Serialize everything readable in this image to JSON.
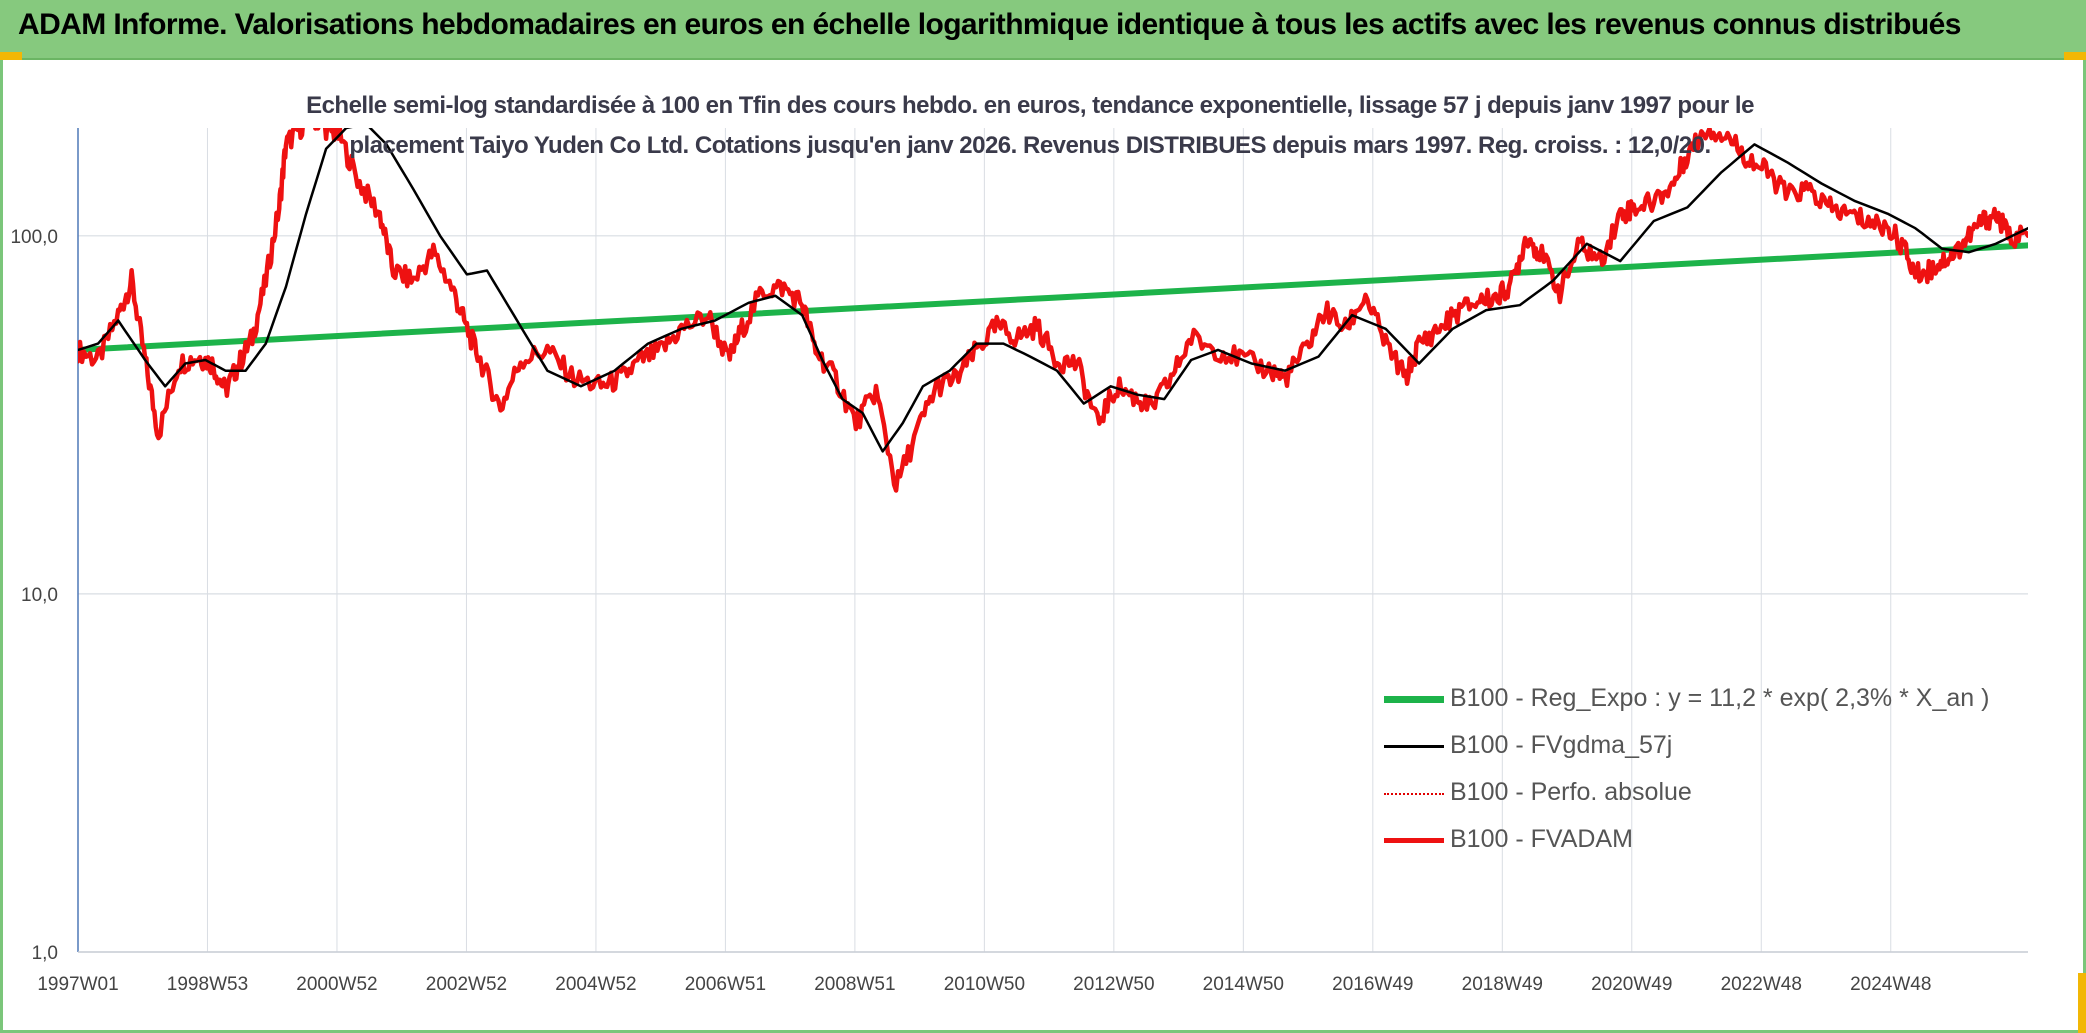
{
  "header": {
    "title": "ADAM Informe. Valorisations hebdomadaires en euros en échelle logarithmique identique à tous les actifs avec les revenus connus distribués"
  },
  "chart_data": {
    "type": "line",
    "subtitle_line1": "Echelle semi-log standardisée à 100 en Tfin des cours hebdo. en euros, tendance exponentielle, lissage 57 j depuis janv 1997 pour le",
    "subtitle_line2": "placement Taiyo Yuden Co Ltd. Cotations jusqu'en janv 2026. Revenus DISTRIBUES depuis mars 1997. Reg. croiss. : 12,0/20.",
    "y_scale": "log",
    "ylim": [
      1,
      200
    ],
    "y_ticks": [
      "1,0",
      "10,0",
      "100,0"
    ],
    "x_range": [
      1997.0,
      2026.08
    ],
    "x_ticks": [
      "1997W01",
      "1998W53",
      "2000W52",
      "2002W52",
      "2004W52",
      "2006W51",
      "2008W51",
      "2010W50",
      "2012W50",
      "2014W50",
      "2016W49",
      "2018W49",
      "2020W49",
      "2022W48",
      "2024W48"
    ],
    "grid": true,
    "legend_position": "bottom-right",
    "legend": [
      {
        "label": "B100 - Reg_Expo : y = 11,2 * exp( 2,3% *  X_an )",
        "color": "#1db34a",
        "style": "solid"
      },
      {
        "label": "B100 - FVgdma_57j",
        "color": "#000000",
        "style": "solid"
      },
      {
        "label": "B100 - Perfo. absolue",
        "color": "#e00000",
        "style": "dotted"
      },
      {
        "label": "B100 - FVADAM",
        "color": "#ee1111",
        "style": "solid"
      }
    ],
    "series": [
      {
        "name": "B100 - Reg_Expo : y = 11,2 * exp( 2,3% *  X_an )",
        "color": "#1db34a",
        "x": [
          1997.0,
          2026.08
        ],
        "y": [
          48,
          94
        ]
      },
      {
        "name": "B100 - FVADAM",
        "color": "#ee1111",
        "x": [
          1997.0,
          1997.3,
          1997.6,
          1997.8,
          1998.0,
          1998.2,
          1998.5,
          1998.8,
          1999.0,
          1999.2,
          1999.4,
          1999.6,
          1999.8,
          2000.0,
          2000.1,
          2000.3,
          2000.5,
          2000.7,
          2000.9,
          2001.2,
          2001.5,
          2001.7,
          2002.0,
          2002.3,
          2002.6,
          2002.8,
          2003.0,
          2003.3,
          2003.6,
          2004.0,
          2004.4,
          2004.8,
          2005.1,
          2005.4,
          2005.7,
          2006.0,
          2006.4,
          2006.7,
          2006.9,
          2007.2,
          2007.5,
          2007.8,
          2008.0,
          2008.3,
          2008.6,
          2008.9,
          2009.2,
          2009.5,
          2009.8,
          2010.1,
          2010.4,
          2010.7,
          2011.0,
          2011.3,
          2011.6,
          2011.9,
          2012.2,
          2012.5,
          2012.8,
          2013.0,
          2013.3,
          2013.6,
          2014.0,
          2014.4,
          2014.8,
          2015.0,
          2015.3,
          2015.6,
          2015.9,
          2016.2,
          2016.5,
          2016.8,
          2017.0,
          2017.3,
          2017.6,
          2017.9,
          2018.2,
          2018.4,
          2018.6,
          2018.8,
          2019.1,
          2019.4,
          2019.7,
          2020.0,
          2020.2,
          2020.5,
          2020.8,
          2021.0,
          2021.3,
          2021.6,
          2021.9,
          2022.2,
          2022.5,
          2022.8,
          2023.1,
          2023.4,
          2023.7,
          2024.0,
          2024.2,
          2024.4,
          2024.6,
          2024.8,
          2025.0,
          2025.2,
          2025.4,
          2025.6,
          2025.8,
          2026.08
        ],
        "y": [
          48,
          45,
          60,
          75,
          45,
          28,
          44,
          46,
          44,
          37,
          44,
          52,
          75,
          120,
          180,
          200,
          215,
          200,
          190,
          140,
          115,
          80,
          75,
          90,
          70,
          55,
          45,
          33,
          45,
          48,
          40,
          38,
          40,
          45,
          48,
          55,
          60,
          45,
          55,
          70,
          72,
          65,
          48,
          40,
          30,
          37,
          20,
          28,
          38,
          40,
          48,
          56,
          52,
          56,
          45,
          44,
          30,
          38,
          35,
          33,
          40,
          52,
          48,
          45,
          42,
          40,
          48,
          62,
          55,
          68,
          50,
          40,
          50,
          55,
          62,
          66,
          68,
          75,
          100,
          90,
          70,
          95,
          85,
          115,
          120,
          125,
          140,
          170,
          200,
          190,
          165,
          150,
          130,
          135,
          120,
          115,
          110,
          105,
          95,
          78,
          80,
          85,
          90,
          100,
          110,
          115,
          100,
          100
        ]
      },
      {
        "name": "B100 - FVgdma_57j",
        "color": "#000000",
        "x": [
          1997.0,
          1997.3,
          1997.6,
          1998.0,
          1998.3,
          1998.6,
          1998.9,
          1999.2,
          1999.5,
          1999.8,
          2000.1,
          2000.4,
          2000.7,
          2001.0,
          2001.3,
          2001.6,
          2002.0,
          2002.4,
          2002.8,
          2003.1,
          2003.5,
          2004.0,
          2004.5,
          2005.0,
          2005.5,
          2006.0,
          2006.5,
          2007.0,
          2007.4,
          2007.8,
          2008.1,
          2008.4,
          2008.7,
          2009.0,
          2009.3,
          2009.6,
          2010.0,
          2010.4,
          2010.8,
          2011.2,
          2011.6,
          2012.0,
          2012.4,
          2012.8,
          2013.2,
          2013.6,
          2014.0,
          2014.5,
          2015.0,
          2015.5,
          2016.0,
          2016.5,
          2017.0,
          2017.5,
          2018.0,
          2018.5,
          2019.0,
          2019.5,
          2020.0,
          2020.5,
          2021.0,
          2021.5,
          2022.0,
          2022.5,
          2023.0,
          2023.5,
          2024.0,
          2024.4,
          2024.8,
          2025.2,
          2025.6,
          2026.08
        ],
        "y": [
          48,
          50,
          58,
          45,
          38,
          44,
          45,
          42,
          42,
          50,
          72,
          115,
          175,
          200,
          205,
          180,
          135,
          100,
          78,
          80,
          60,
          42,
          38,
          42,
          50,
          55,
          58,
          65,
          68,
          60,
          45,
          35,
          32,
          25,
          30,
          38,
          42,
          50,
          50,
          46,
          42,
          34,
          38,
          36,
          35,
          45,
          48,
          44,
          42,
          46,
          60,
          55,
          44,
          55,
          62,
          64,
          75,
          95,
          85,
          110,
          120,
          150,
          180,
          160,
          140,
          125,
          115,
          105,
          92,
          90,
          95,
          105
        ]
      }
    ]
  }
}
